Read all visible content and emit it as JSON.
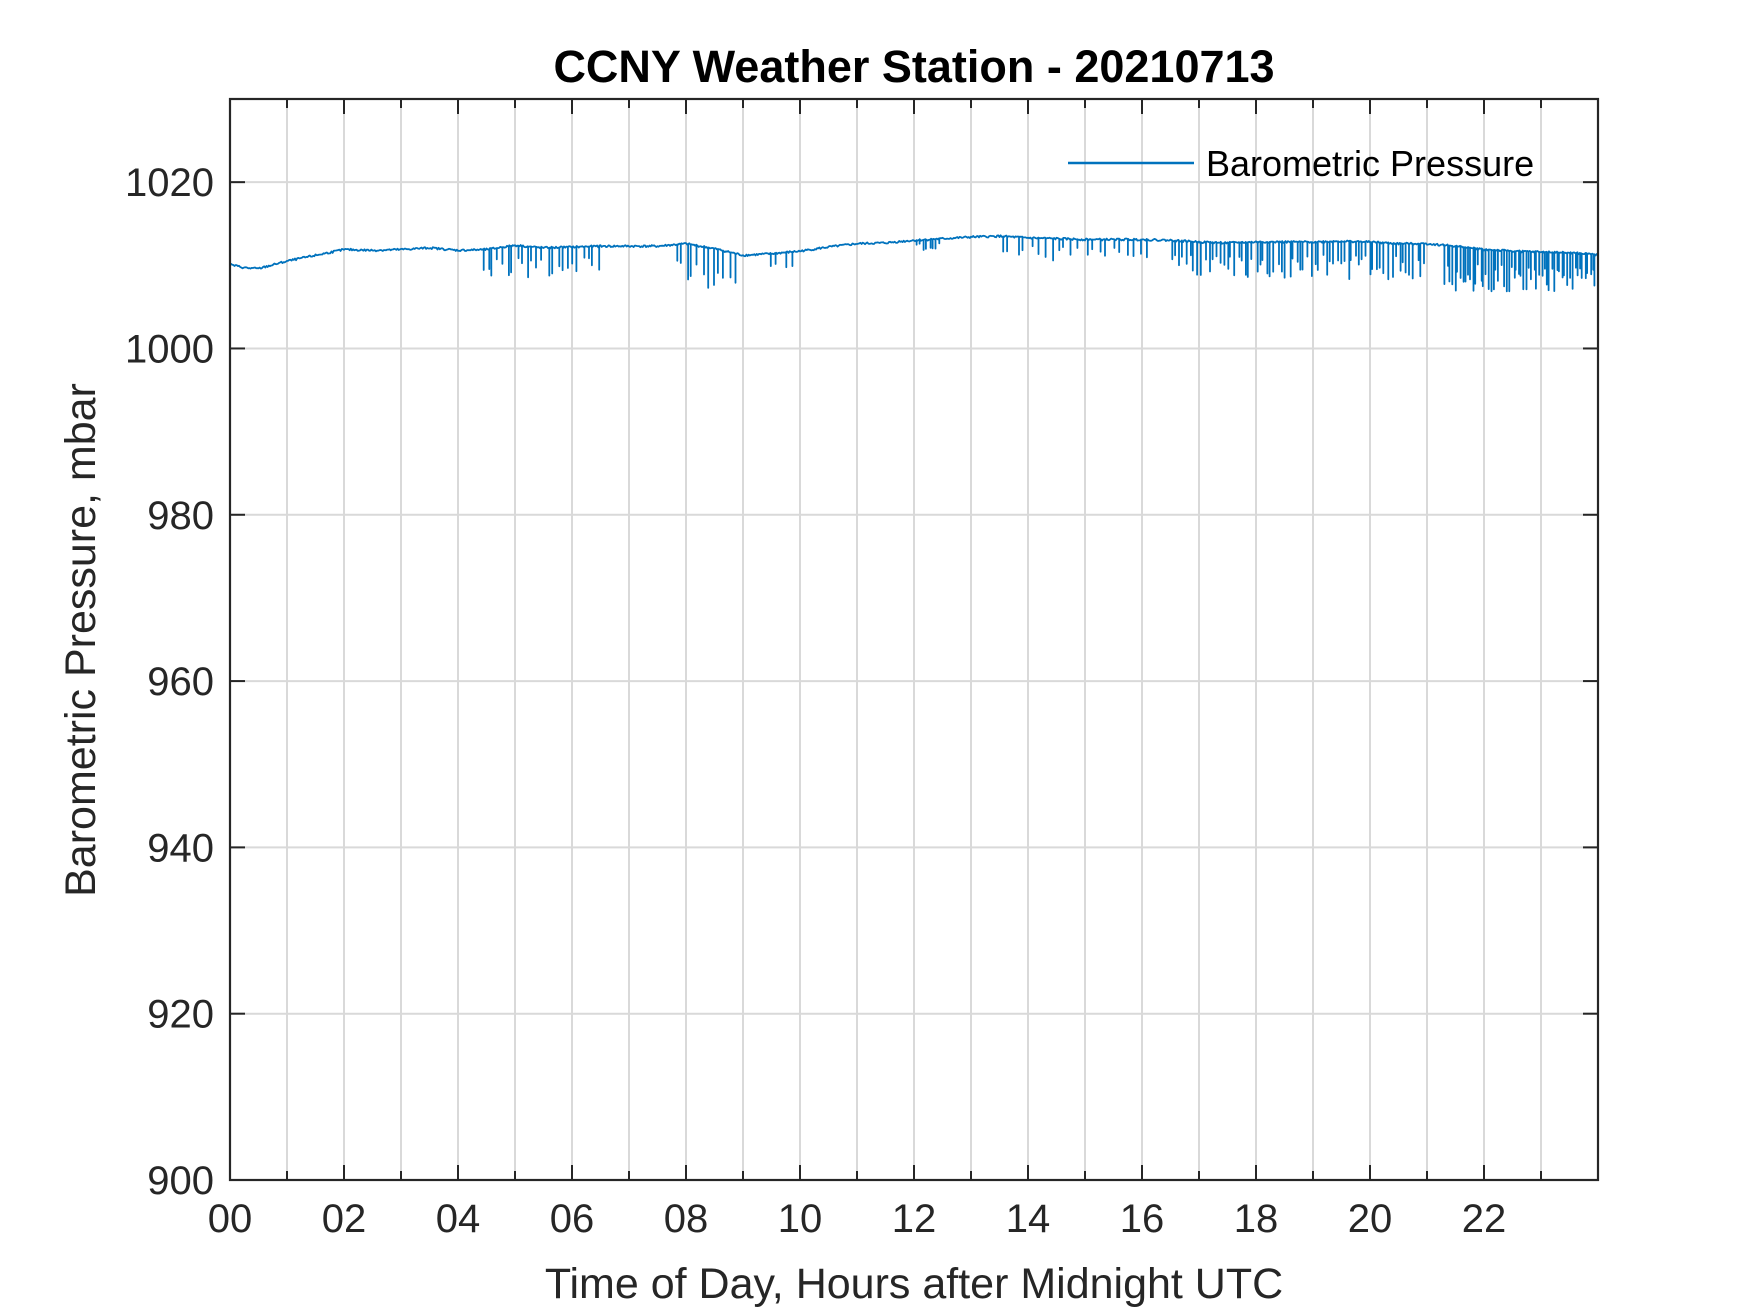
{
  "chart_data": {
    "type": "line",
    "title": "CCNY Weather Station - 20210713",
    "xlabel": "Time of Day, Hours after Midnight UTC",
    "ylabel": "Barometric Pressure, mbar",
    "xlim": [
      0,
      24
    ],
    "ylim": [
      900,
      1030
    ],
    "xticks": [
      0,
      2,
      4,
      6,
      8,
      10,
      12,
      14,
      16,
      18,
      20,
      22
    ],
    "xtick_labels": [
      "00",
      "02",
      "04",
      "06",
      "08",
      "10",
      "12",
      "14",
      "16",
      "18",
      "20",
      "22"
    ],
    "yticks": [
      900,
      920,
      940,
      960,
      980,
      1000,
      1020
    ],
    "ytick_labels": [
      "900",
      "920",
      "940",
      "960",
      "980",
      "1000",
      "1020"
    ],
    "minor_xtick_step": 1,
    "grid": true,
    "legend": {
      "position": "top-right",
      "entries": [
        "Barometric Pressure"
      ]
    },
    "colors": {
      "series": "#0072BD",
      "axes": "#262626",
      "grid": "#d9d9d9"
    },
    "series": [
      {
        "name": "Barometric Pressure",
        "baseline_points": [
          [
            0.0,
            1010.1
          ],
          [
            0.25,
            1009.7
          ],
          [
            0.5,
            1009.6
          ],
          [
            1.0,
            1010.5
          ],
          [
            1.5,
            1011.2
          ],
          [
            2.0,
            1011.9
          ],
          [
            2.5,
            1011.8
          ],
          [
            3.0,
            1011.9
          ],
          [
            3.5,
            1012.1
          ],
          [
            4.0,
            1011.8
          ],
          [
            4.5,
            1011.9
          ],
          [
            5.0,
            1012.4
          ],
          [
            5.5,
            1012.1
          ],
          [
            6.0,
            1012.2
          ],
          [
            6.5,
            1012.3
          ],
          [
            7.0,
            1012.3
          ],
          [
            7.5,
            1012.3
          ],
          [
            8.0,
            1012.6
          ],
          [
            8.5,
            1012.0
          ],
          [
            9.0,
            1011.2
          ],
          [
            9.5,
            1011.4
          ],
          [
            10.0,
            1011.7
          ],
          [
            10.5,
            1012.2
          ],
          [
            11.0,
            1012.6
          ],
          [
            11.5,
            1012.7
          ],
          [
            12.0,
            1013.0
          ],
          [
            12.5,
            1013.2
          ],
          [
            13.0,
            1013.4
          ],
          [
            13.5,
            1013.5
          ],
          [
            14.0,
            1013.3
          ],
          [
            14.5,
            1013.2
          ],
          [
            15.0,
            1013.1
          ],
          [
            15.5,
            1013.1
          ],
          [
            16.0,
            1013.1
          ],
          [
            16.5,
            1013.0
          ],
          [
            17.0,
            1012.8
          ],
          [
            17.5,
            1012.7
          ],
          [
            18.0,
            1012.8
          ],
          [
            18.5,
            1012.8
          ],
          [
            19.0,
            1012.8
          ],
          [
            19.5,
            1012.9
          ],
          [
            20.0,
            1012.8
          ],
          [
            20.5,
            1012.6
          ],
          [
            21.0,
            1012.6
          ],
          [
            21.5,
            1012.3
          ],
          [
            22.0,
            1011.9
          ],
          [
            22.5,
            1011.7
          ],
          [
            23.0,
            1011.6
          ],
          [
            23.5,
            1011.5
          ],
          [
            23.98,
            1011.3
          ]
        ],
        "dropout_periods": [
          {
            "start": 4.4,
            "end": 6.5,
            "spikes": 24,
            "min_value": 1008.5
          },
          {
            "start": 7.8,
            "end": 8.9,
            "spikes": 12,
            "min_value": 1007.0
          },
          {
            "start": 9.4,
            "end": 10.0,
            "spikes": 4,
            "min_value": 1009.5
          },
          {
            "start": 12.0,
            "end": 12.5,
            "spikes": 8,
            "min_value": 1011.8
          },
          {
            "start": 13.5,
            "end": 16.2,
            "spikes": 22,
            "min_value": 1010.5
          },
          {
            "start": 16.5,
            "end": 21.0,
            "spikes": 70,
            "min_value": 1008.3
          },
          {
            "start": 21.3,
            "end": 23.98,
            "spikes": 60,
            "min_value": 1006.8
          }
        ]
      }
    ]
  }
}
